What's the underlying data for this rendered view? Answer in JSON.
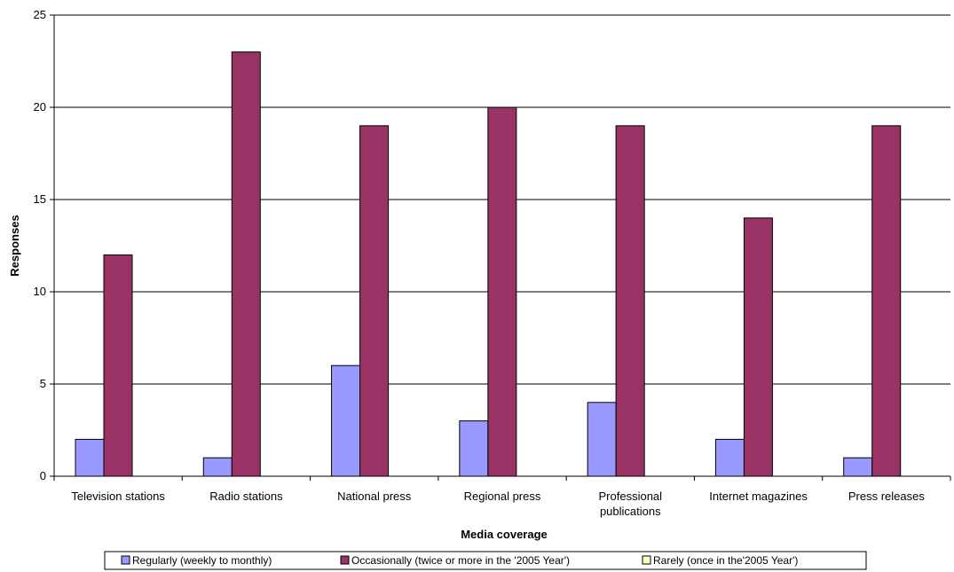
{
  "chart_data": {
    "type": "bar",
    "title": "",
    "xlabel": "Media coverage",
    "ylabel": "Responses",
    "ylim": [
      0,
      25
    ],
    "yticks": [
      0,
      5,
      10,
      15,
      20,
      25
    ],
    "grid": true,
    "legend_position": "bottom",
    "categories": [
      [
        "Television stations"
      ],
      [
        "Radio stations"
      ],
      [
        "National press"
      ],
      [
        "Regional press"
      ],
      [
        "Professional",
        "publications"
      ],
      [
        "Internet magazines"
      ],
      [
        "Press releases"
      ]
    ],
    "series": [
      {
        "name": "Regularly (weekly to monthly)",
        "color": "#9999ff",
        "values": [
          2,
          1,
          6,
          3,
          4,
          2,
          1
        ]
      },
      {
        "name": "Occasionally (twice or more in the '2005 Year')",
        "color": "#993366",
        "values": [
          12,
          23,
          19,
          20,
          19,
          14,
          19
        ]
      },
      {
        "name": "Rarely (once in the'2005 Year')",
        "color": "#ffffcc",
        "values": [
          0,
          0,
          0,
          0,
          0,
          0,
          0
        ]
      }
    ]
  }
}
